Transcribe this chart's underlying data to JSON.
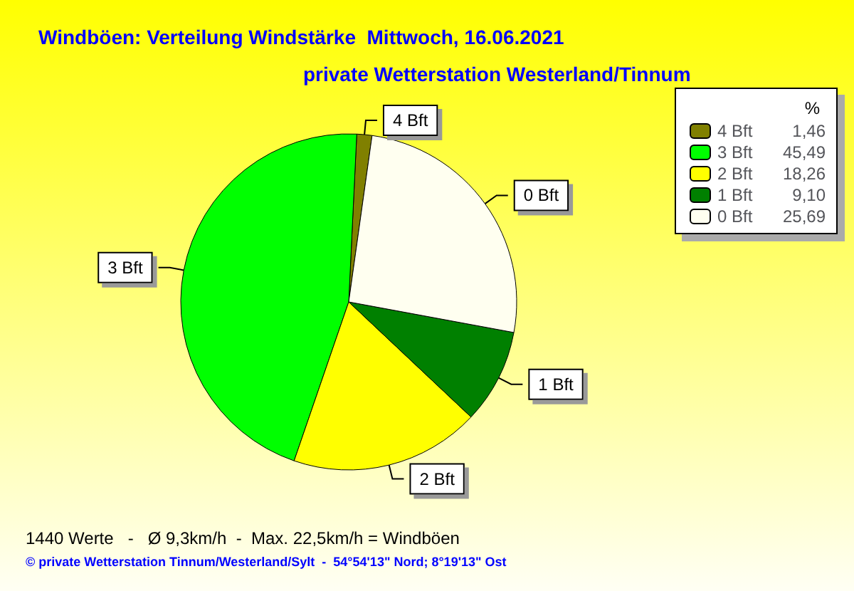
{
  "chart_data": {
    "type": "pie",
    "title": "Windböen: Verteilung Windstärke  Mittwoch, 16.06.2021",
    "subtitle": "private Wetterstation Westerland/Tinnum",
    "categories": [
      "4 Bft",
      "3 Bft",
      "2 Bft",
      "1 Bft",
      "0 Bft"
    ],
    "values": [
      1.46,
      45.49,
      18.26,
      9.1,
      25.69
    ],
    "value_labels": [
      "1,46",
      "45,49",
      "18,26",
      "9,10",
      "25,69"
    ],
    "colors": [
      "#808000",
      "#00ff00",
      "#ffff00",
      "#008000",
      "#fffff0"
    ],
    "legend": "top right",
    "legend_title": "%",
    "annotations": [
      "1440 Werte   -   Ø 9,3km/h  -  Max. 22,5km/h = Windböen",
      "© private Wetterstation Tinnum/Westerland/Sylt  -  54°54'13\" Nord; 8°19'13\" Ost"
    ]
  }
}
